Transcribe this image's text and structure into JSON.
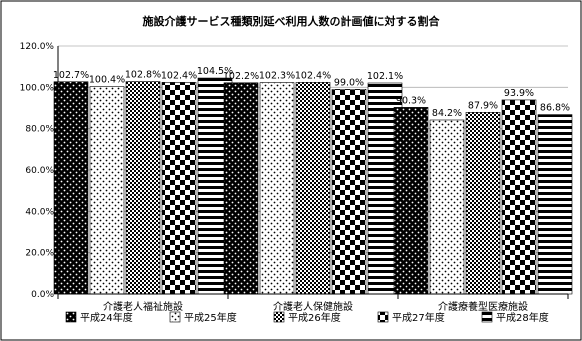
{
  "chart_data": {
    "type": "bar",
    "title": "施設介護サービス種類別延べ利用人数の計画値に対する割合",
    "categories": [
      "介護老人福祉施設",
      "介護老人保健施設",
      "介護療養型医療施設"
    ],
    "series": [
      {
        "name": "平成24年度",
        "values": [
          102.7,
          102.2,
          90.3
        ],
        "labels": [
          "102.7%",
          "102.2%",
          "90.3%"
        ]
      },
      {
        "name": "平成25年度",
        "values": [
          100.4,
          102.3,
          84.2
        ],
        "labels": [
          "100.4%",
          "102.3%",
          "84.2%"
        ]
      },
      {
        "name": "平成26年度",
        "values": [
          102.8,
          102.4,
          87.9
        ],
        "labels": [
          "102.8%",
          "102.4%",
          "87.9%"
        ]
      },
      {
        "name": "平成27年度",
        "values": [
          102.4,
          99.0,
          93.9
        ],
        "labels": [
          "102.4%",
          "99.0%",
          "93.9%"
        ]
      },
      {
        "name": "平成28年度",
        "values": [
          104.5,
          102.1,
          86.8
        ],
        "labels": [
          "104.5%",
          "102.1%",
          "86.8%"
        ]
      }
    ],
    "y_ticks": [
      "0.0%",
      "20.0%",
      "40.0%",
      "60.0%",
      "80.0%",
      "100.0%",
      "120.0%"
    ],
    "ylim": [
      0,
      120
    ],
    "grid": true,
    "legend_position": "bottom"
  }
}
